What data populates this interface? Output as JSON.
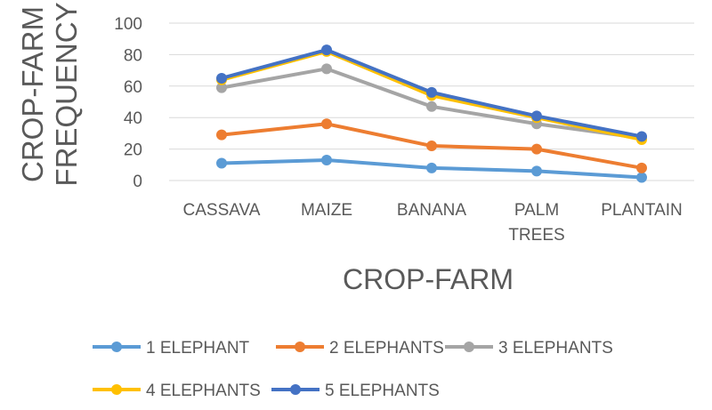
{
  "chart_data": {
    "type": "line",
    "categories": [
      "CASSAVA",
      "MAIZE",
      "BANANA",
      "PALM TREES",
      "PLANTAIN"
    ],
    "xlabel": "CROP-FARM",
    "ylabel": "CROP-FARM FREQUENCY",
    "ylim": [
      0,
      100
    ],
    "yticks": [
      0,
      20,
      40,
      60,
      80,
      100
    ],
    "grid": true,
    "legend": "bottom",
    "series": [
      {
        "name": "1 ELEPHANT",
        "color": "#5B9BD5",
        "values": [
          11,
          13,
          8,
          6,
          2
        ]
      },
      {
        "name": "2 ELEPHANTS",
        "color": "#ED7D31",
        "values": [
          29,
          36,
          22,
          20,
          8
        ]
      },
      {
        "name": "3 ELEPHANTS",
        "color": "#A5A5A5",
        "values": [
          59,
          71,
          47,
          36,
          27
        ]
      },
      {
        "name": "4 ELEPHANTS",
        "color": "#FFC000",
        "values": [
          64,
          82,
          54,
          40,
          26
        ]
      },
      {
        "name": "5 ELEPHANTS",
        "color": "#4472C4",
        "values": [
          65,
          83,
          56,
          41,
          28
        ]
      }
    ]
  }
}
